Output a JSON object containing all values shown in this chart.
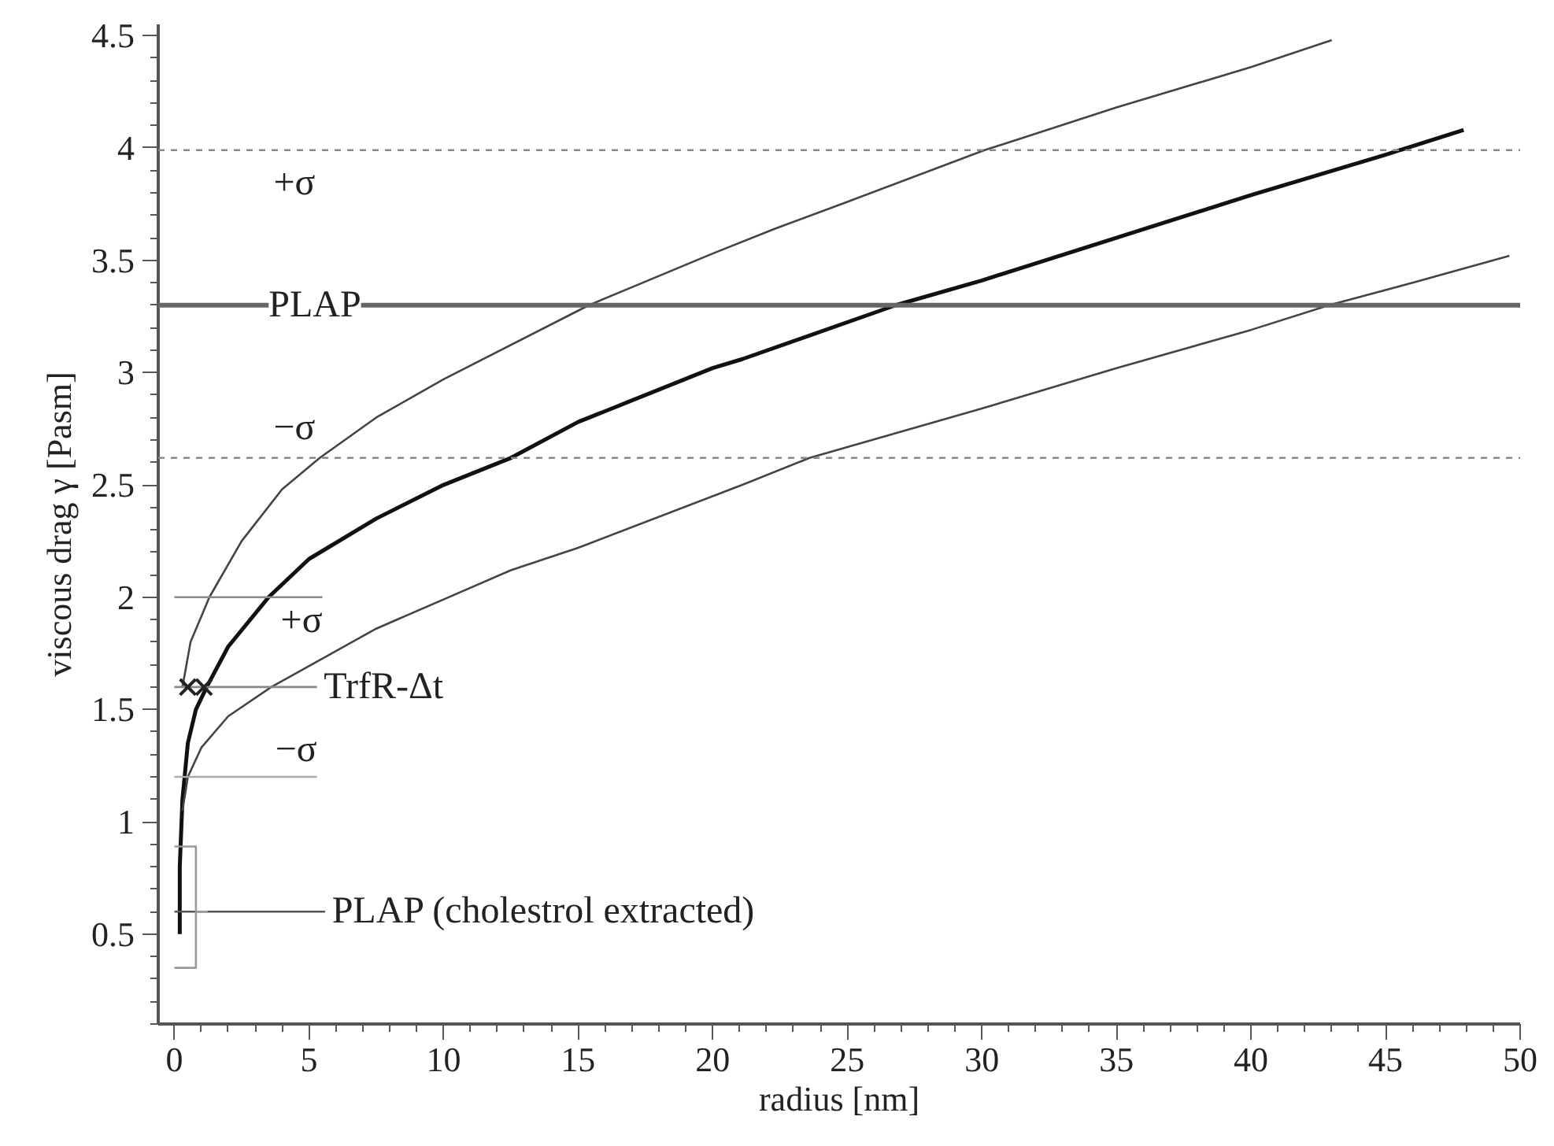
{
  "chart_data": {
    "type": "line",
    "xlabel": "radius [nm]",
    "ylabel": "viscous drag γ [Pasm]",
    "xlim": [
      -0.6,
      50
    ],
    "ylim": [
      0.1,
      4.55
    ],
    "xticks": [
      0,
      5,
      10,
      15,
      20,
      25,
      30,
      35,
      40,
      45,
      50
    ],
    "yticks": [
      0.5,
      1.0,
      1.5,
      2.0,
      2.5,
      3.0,
      3.5,
      4.0,
      4.5
    ],
    "grid": false,
    "marker": "none",
    "series": [
      {
        "color": "#444444",
        "x": [
          0.3,
          0.6,
          1.3,
          2.5,
          4,
          5.4,
          7.5,
          10,
          15.4,
          20,
          22.3,
          25,
          30.1,
          35,
          40,
          43
        ],
        "values": [
          1.6,
          1.8,
          2.0,
          2.25,
          2.48,
          2.62,
          2.8,
          2.97,
          3.3,
          3.53,
          3.64,
          3.76,
          3.99,
          4.18,
          4.36,
          4.48
        ]
      },
      {
        "color": "#111111",
        "x": [
          0.2,
          0.2,
          0.3,
          0.5,
          0.8,
          1.2,
          2,
          3.5,
          5,
          7.5,
          10,
          12.5,
          15,
          20,
          21.1,
          26.8,
          30,
          35,
          40,
          45,
          47.9
        ],
        "values": [
          0.5,
          0.8,
          1.1,
          1.35,
          1.5,
          1.6,
          1.78,
          2.0,
          2.17,
          2.35,
          2.5,
          2.62,
          2.78,
          3.02,
          3.06,
          3.3,
          3.41,
          3.6,
          3.79,
          3.97,
          4.08
        ]
      },
      {
        "color": "#444444",
        "x": [
          0.3,
          0.5,
          1,
          2,
          3.6,
          5.4,
          7.5,
          10,
          12.5,
          15,
          21.1,
          23.6,
          30,
          35,
          40,
          42.9,
          46,
          49.6
        ],
        "values": [
          1.05,
          1.2,
          1.33,
          1.47,
          1.6,
          1.72,
          1.86,
          1.99,
          2.12,
          2.22,
          2.5,
          2.62,
          2.84,
          3.02,
          3.19,
          3.3,
          3.4,
          3.52
        ]
      },
      {
        "name": "+σ",
        "color": "#888888",
        "x": [
          0,
          5.5
        ],
        "values": [
          2.0,
          2.0
        ]
      },
      {
        "name": "TrfR-Δt",
        "color": "#888888",
        "x": [
          0,
          5.3
        ],
        "values": [
          1.6,
          1.6
        ]
      },
      {
        "name": "−σ",
        "color": "#aaaaaa",
        "x": [
          0,
          5.3
        ],
        "values": [
          1.2,
          1.2
        ]
      },
      {
        "name": "PLAP (cholestrol extracted)",
        "color": "#555555",
        "x": [
          0,
          5.6
        ],
        "values": [
          0.6,
          0.6
        ]
      },
      {
        "color": "#999999",
        "x": [
          0,
          0.8,
          0.8,
          1.2,
          0.8,
          0.8,
          0
        ],
        "values": [
          0.89,
          0.89,
          0.6,
          0.6,
          0.6,
          0.35,
          0.35
        ]
      },
      {
        "type": "scatter",
        "marker": "cross",
        "color": "#222222",
        "x": [
          0.5,
          1.1
        ],
        "values": [
          1.6,
          1.6
        ]
      }
    ],
    "ref_lines": [
      {
        "axis": "y",
        "value": 3.99,
        "label": "+σ",
        "color": "#888888",
        "line_style": "dashed"
      },
      {
        "axis": "y",
        "value": 3.3,
        "label": "PLAP",
        "color": "#666666",
        "line_style": "solid"
      },
      {
        "axis": "y",
        "value": 2.62,
        "label": "−σ",
        "color": "#888888",
        "line_style": "dashed"
      }
    ]
  }
}
